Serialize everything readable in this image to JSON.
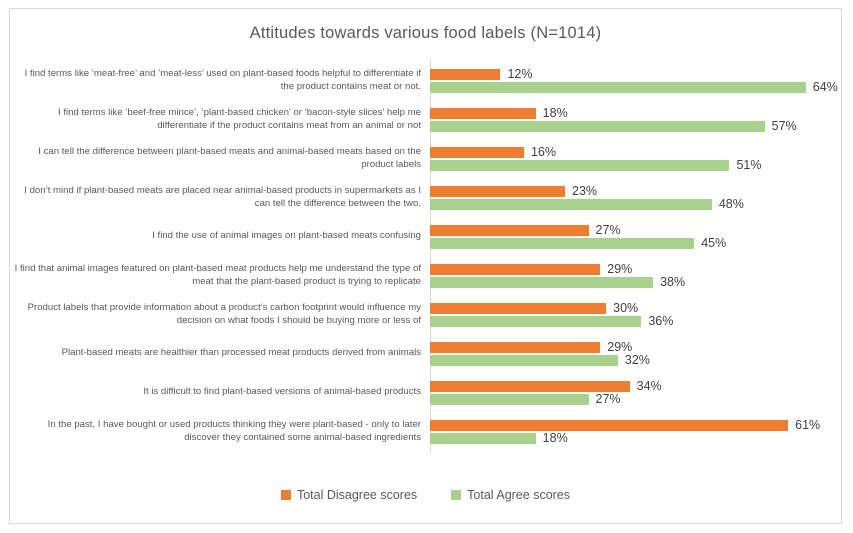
{
  "page": {
    "background": "#ffffff",
    "card_border": "#D9D9D9",
    "axis_line_color": "#D9D9D9",
    "title_color": "#595959",
    "label_color": "#595959",
    "value_color": "#404040"
  },
  "chart_data": {
    "type": "bar",
    "orientation": "horizontal",
    "title": "Attitudes towards various food labels (N=1014)",
    "value_suffix": "%",
    "xlim": [
      0,
      70
    ],
    "grid": false,
    "legend_position": "bottom",
    "categories": [
      "I find terms like ‘meat-free’ and ‘meat-less’ used on plant-based foods helpful to differentiate if the product contains meat or not.",
      "I find terms like ‘beef-free mince’, ‘plant-based chicken’ or ‘bacon-style slices’ help me differentiate if the product contains meat from an animal or not",
      "I can tell the difference between plant-based meats and animal-based meats based on the product labels",
      "I don’t mind if plant-based meats are placed near animal-based products in supermarkets as I can tell the difference between the two.",
      "I find the use of animal images on plant-based meats confusing",
      "I find that animal images featured on plant-based meat products help me understand the type of meat that the plant-based product is trying to replicate",
      "Product labels that provide information about a product’s carbon footprint would influence my decision on what foods I should be buying more or less of",
      "Plant-based meats are healthier than processed meat products derived from animals",
      "It is difficult to find plant-based versions of animal-based products",
      "In the past, I have bought or used products thinking they were plant-based - only to later discover they contained some animal-based ingredients"
    ],
    "series": [
      {
        "name": "Total Disagree scores",
        "color": "#ED7D31",
        "values": [
          12,
          18,
          16,
          23,
          27,
          29,
          30,
          29,
          34,
          61
        ]
      },
      {
        "name": "Total Agree scores",
        "color": "#A9D18E",
        "values": [
          64,
          57,
          51,
          48,
          45,
          38,
          36,
          32,
          27,
          18
        ]
      }
    ]
  }
}
